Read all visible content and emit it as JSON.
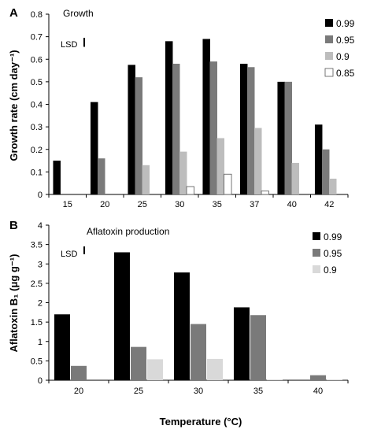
{
  "figure": {
    "xlabel": "Temperature (°C)",
    "lsd_label": "LSD"
  },
  "chart_data": [
    {
      "type": "bar",
      "panel": "A",
      "title": "Growth",
      "xlabel": "",
      "ylabel": "Growth rate (cm day⁻¹)",
      "categories": [
        "15",
        "20",
        "25",
        "30",
        "35",
        "37",
        "40",
        "42"
      ],
      "ylim": [
        0,
        0.8
      ],
      "yticks": [
        0,
        0.1,
        0.2,
        0.3,
        0.4,
        0.5,
        0.6,
        0.7,
        0.8
      ],
      "grid": false,
      "legend_position": "right",
      "lsd": 0.04,
      "series": [
        {
          "name": "0.99",
          "color": "#000000",
          "values": [
            0.15,
            0.41,
            0.575,
            0.68,
            0.69,
            0.58,
            0.5,
            0.31
          ]
        },
        {
          "name": "0.95",
          "color": "#7a7a7a",
          "values": [
            null,
            0.16,
            0.52,
            0.58,
            0.59,
            0.565,
            0.5,
            0.2
          ]
        },
        {
          "name": "0.9",
          "color": "#bdbdbd",
          "values": [
            null,
            null,
            0.13,
            0.19,
            0.25,
            0.295,
            0.14,
            0.07
          ]
        },
        {
          "name": "0.85",
          "color": "#ffffff",
          "values": [
            null,
            null,
            null,
            0.035,
            0.09,
            0.015,
            null,
            null
          ]
        }
      ]
    },
    {
      "type": "bar",
      "panel": "B",
      "title": "Aflatoxin production",
      "xlabel": "",
      "ylabel": "Aflatoxin B₁ (μg g⁻¹)",
      "categories": [
        "20",
        "25",
        "30",
        "35",
        "40"
      ],
      "ylim": [
        0,
        4
      ],
      "yticks": [
        0,
        0.5,
        1,
        1.5,
        2,
        2.5,
        3,
        3.5,
        4
      ],
      "grid": false,
      "legend_position": "right",
      "lsd": 0.2,
      "series": [
        {
          "name": "0.99",
          "color": "#000000",
          "values": [
            1.7,
            3.3,
            2.78,
            1.88,
            null
          ]
        },
        {
          "name": "0.95",
          "color": "#7a7a7a",
          "values": [
            0.37,
            0.86,
            1.45,
            1.68,
            0.13
          ]
        },
        {
          "name": "0.9",
          "color": "#d9d9d9",
          "values": [
            null,
            0.54,
            0.55,
            0.02,
            0.02
          ]
        }
      ]
    }
  ]
}
